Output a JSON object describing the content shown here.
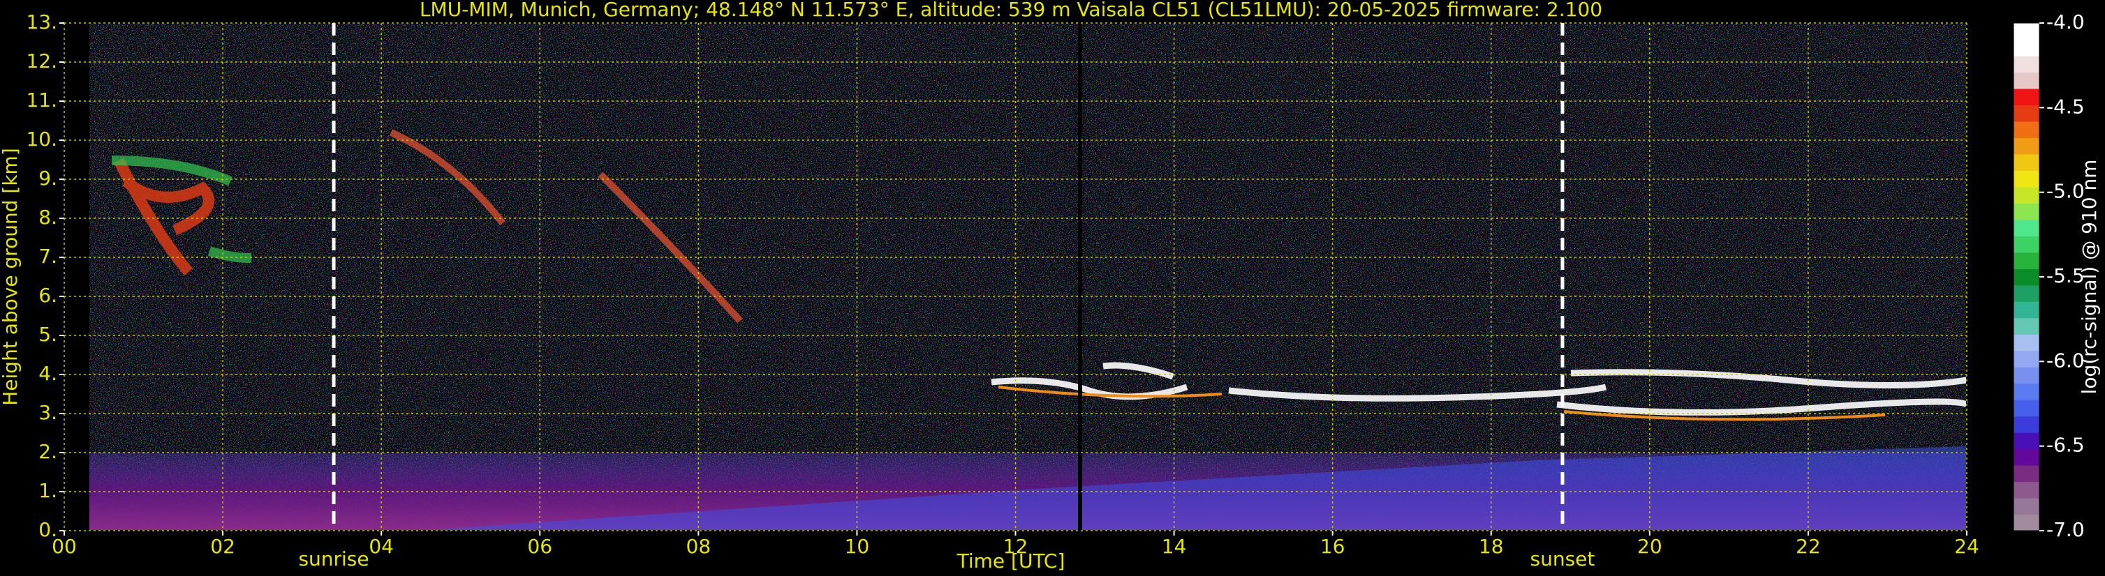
{
  "chart_data": {
    "type": "heatmap",
    "title": "LMU-MIM, Munich, Germany; 48.148° N 11.573° E, altitude: 539 m    Vaisala CL51 (CL51LMU): 20-05-2025    firmware: 2.100",
    "xlabel": "Time [UTC]",
    "ylabel": "Height above ground [km]",
    "xlim": [
      0,
      24
    ],
    "xticks": [
      {
        "value": 0,
        "label": "00"
      },
      {
        "value": 2,
        "label": "02"
      },
      {
        "value": 4,
        "label": "04"
      },
      {
        "value": 6,
        "label": "06"
      },
      {
        "value": 8,
        "label": "08"
      },
      10,
      12,
      14,
      16,
      18,
      20,
      22,
      24
    ],
    "ylim": [
      0,
      13
    ],
    "yticks": [
      {
        "value": 0,
        "label": "0."
      },
      {
        "value": 1,
        "label": "1."
      },
      {
        "value": 2,
        "label": "2."
      },
      {
        "value": 3,
        "label": "3."
      },
      {
        "value": 4,
        "label": "4."
      },
      {
        "value": 5,
        "label": "5."
      },
      {
        "value": 6,
        "label": "6."
      },
      {
        "value": 7,
        "label": "7."
      },
      {
        "value": 8,
        "label": "8."
      },
      {
        "value": 9,
        "label": "9."
      },
      {
        "value": 10,
        "label": "10."
      },
      {
        "value": 11,
        "label": "11."
      },
      {
        "value": 12,
        "label": "12."
      },
      {
        "value": 13,
        "label": "13."
      }
    ],
    "grid": true,
    "grid_color": "#c8c800",
    "annotations": [
      {
        "text": "sunrise",
        "x": 3.4
      },
      {
        "text": "sunset",
        "x": 18.9
      }
    ],
    "colorbar": {
      "label": "log(rc-signal) @ 910 nm",
      "lim": [
        -7,
        -4
      ],
      "ticks": [
        {
          "value": -7,
          "label": "-7.0"
        },
        {
          "value": -6.5,
          "label": "-6.5"
        },
        {
          "value": -6,
          "label": "-6.0"
        },
        {
          "value": -5.5,
          "label": "-5.5"
        },
        {
          "value": -5,
          "label": "-5.0"
        },
        {
          "value": -4.5,
          "label": "-4.5"
        },
        {
          "value": -4,
          "label": "-4.0"
        }
      ],
      "colors": [
        "#a08c9c",
        "#96789a",
        "#8c5a8c",
        "#7a2c82",
        "#64089a",
        "#4a10b8",
        "#3c3cdc",
        "#4660ec",
        "#5a7cf0",
        "#7890f0",
        "#92a8f0",
        "#a8c0f0",
        "#64c8b4",
        "#32b496",
        "#1ea064",
        "#0a8c28",
        "#28b43c",
        "#3cd264",
        "#50e68c",
        "#8ce650",
        "#c8e628",
        "#f0e614",
        "#f0c814",
        "#f09c14",
        "#f06e14",
        "#e63c14",
        "#f01414",
        "#e6c8c8",
        "#f0e0e0",
        "#ffffff",
        "#ffffff"
      ]
    }
  }
}
